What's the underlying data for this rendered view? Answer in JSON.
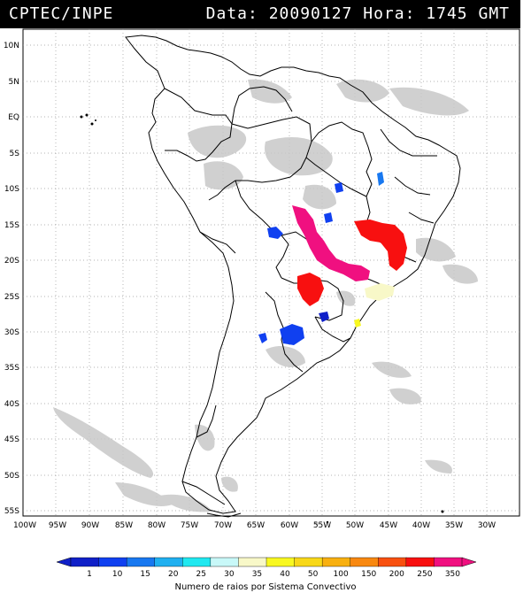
{
  "header": {
    "source": "CPTEC/INPE",
    "date_label": "Data:",
    "date_value": "20090127",
    "time_label": "Hora:",
    "time_value": "1745",
    "tz": "GMT"
  },
  "map": {
    "lat_labels": [
      "10N",
      "5N",
      "EQ",
      "5S",
      "10S",
      "15S",
      "20S",
      "25S",
      "30S",
      "35S",
      "40S",
      "45S",
      "50S",
      "55S"
    ],
    "lon_labels": [
      "100W",
      "95W",
      "90W",
      "85W",
      "80W",
      "75W",
      "70W",
      "65W",
      "60W",
      "55W",
      "50W",
      "45W",
      "40W",
      "35W",
      "30W"
    ]
  },
  "colorbar": {
    "ticks": [
      "1",
      "10",
      "15",
      "20",
      "25",
      "30",
      "35",
      "40",
      "50",
      "100",
      "150",
      "200",
      "250",
      "350"
    ],
    "colors": [
      "#1020c8",
      "#1040f0",
      "#1878f0",
      "#20b0f0",
      "#20e8f0",
      "#c8f8f8",
      "#f8f8c8",
      "#f8f820",
      "#f8d818",
      "#f8b010",
      "#f88810",
      "#f85010",
      "#f81010",
      "#f01080"
    ],
    "title": "Numero de raios por Sistema Convectivo"
  }
}
